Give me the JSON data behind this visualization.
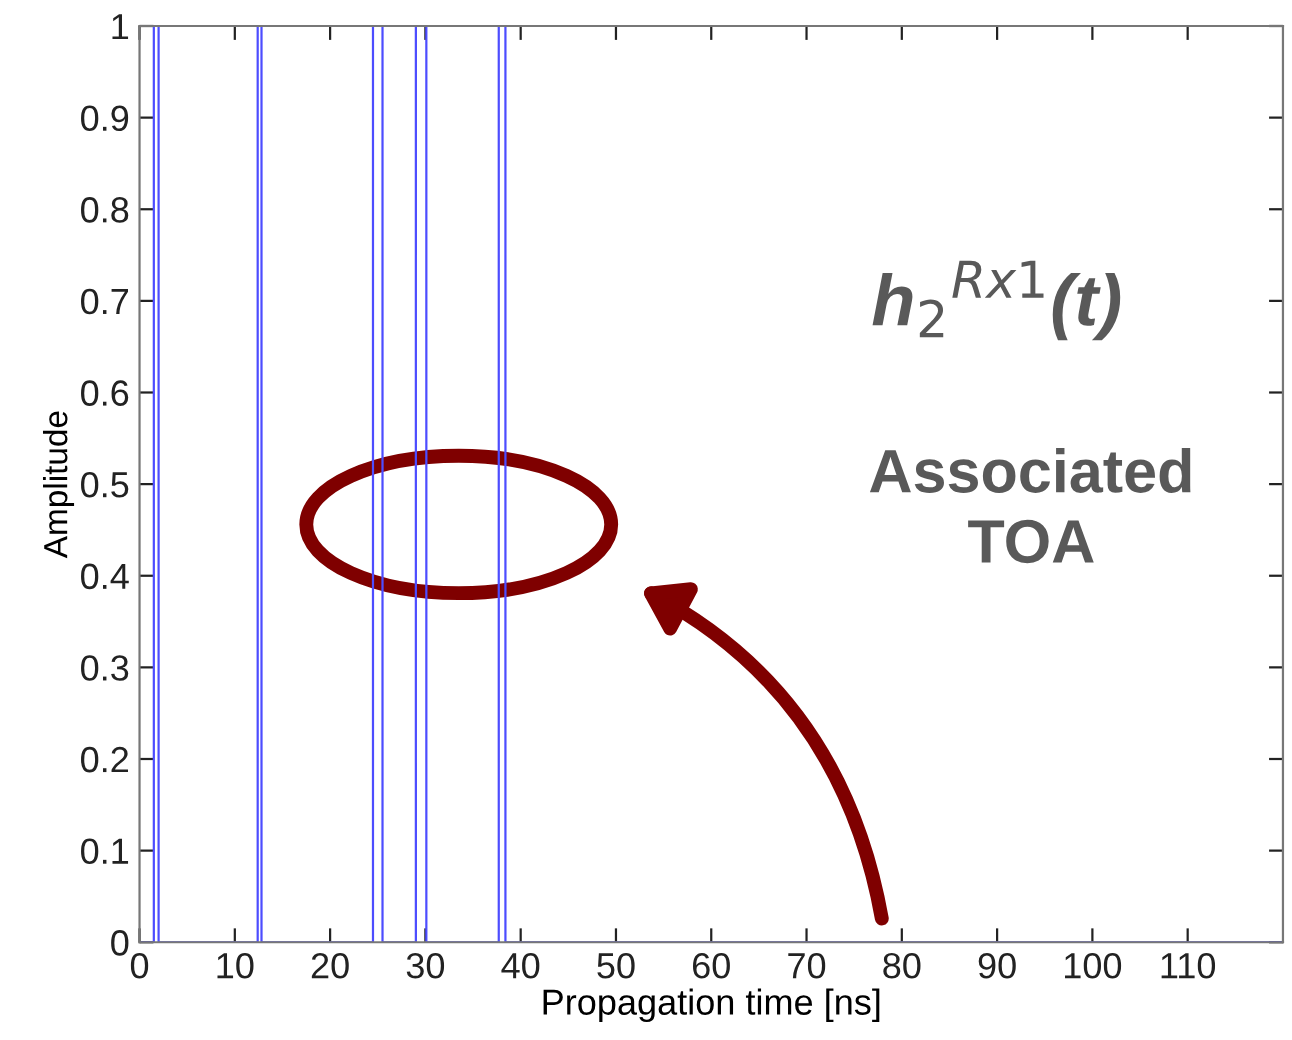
{
  "chart_data": {
    "type": "line",
    "xlabel": "Propagation time [ns]",
    "ylabel": "Amplitude",
    "xlim": [
      0,
      120
    ],
    "ylim": [
      0,
      1
    ],
    "xticks": [
      0,
      10,
      20,
      30,
      40,
      50,
      60,
      70,
      80,
      90,
      100,
      110
    ],
    "yticks": [
      0,
      0.1,
      0.2,
      0.3,
      0.4,
      0.5,
      0.6,
      0.7,
      0.8,
      0.9,
      1
    ],
    "grid": false,
    "legend": false,
    "marker": "none",
    "line_style": "solid",
    "series": [
      {
        "color": "#4d4dff",
        "x": [
          0,
          1.5,
          1.5,
          2,
          2,
          12.4,
          12.4,
          12.8,
          12.8,
          24.5,
          24.5,
          25.5,
          25.5,
          29,
          29,
          30.1,
          30.1,
          37.7,
          37.7,
          38.4,
          38.4,
          120
        ],
        "values": [
          0,
          0,
          1,
          1,
          0,
          0,
          1,
          1,
          0,
          0,
          1,
          1,
          0,
          0,
          1,
          1,
          0,
          0,
          1,
          1,
          0,
          0
        ]
      }
    ],
    "annotations": [
      "h$_{2}$$^{Rx1}$(t)",
      "Associated\nTOA"
    ]
  }
}
